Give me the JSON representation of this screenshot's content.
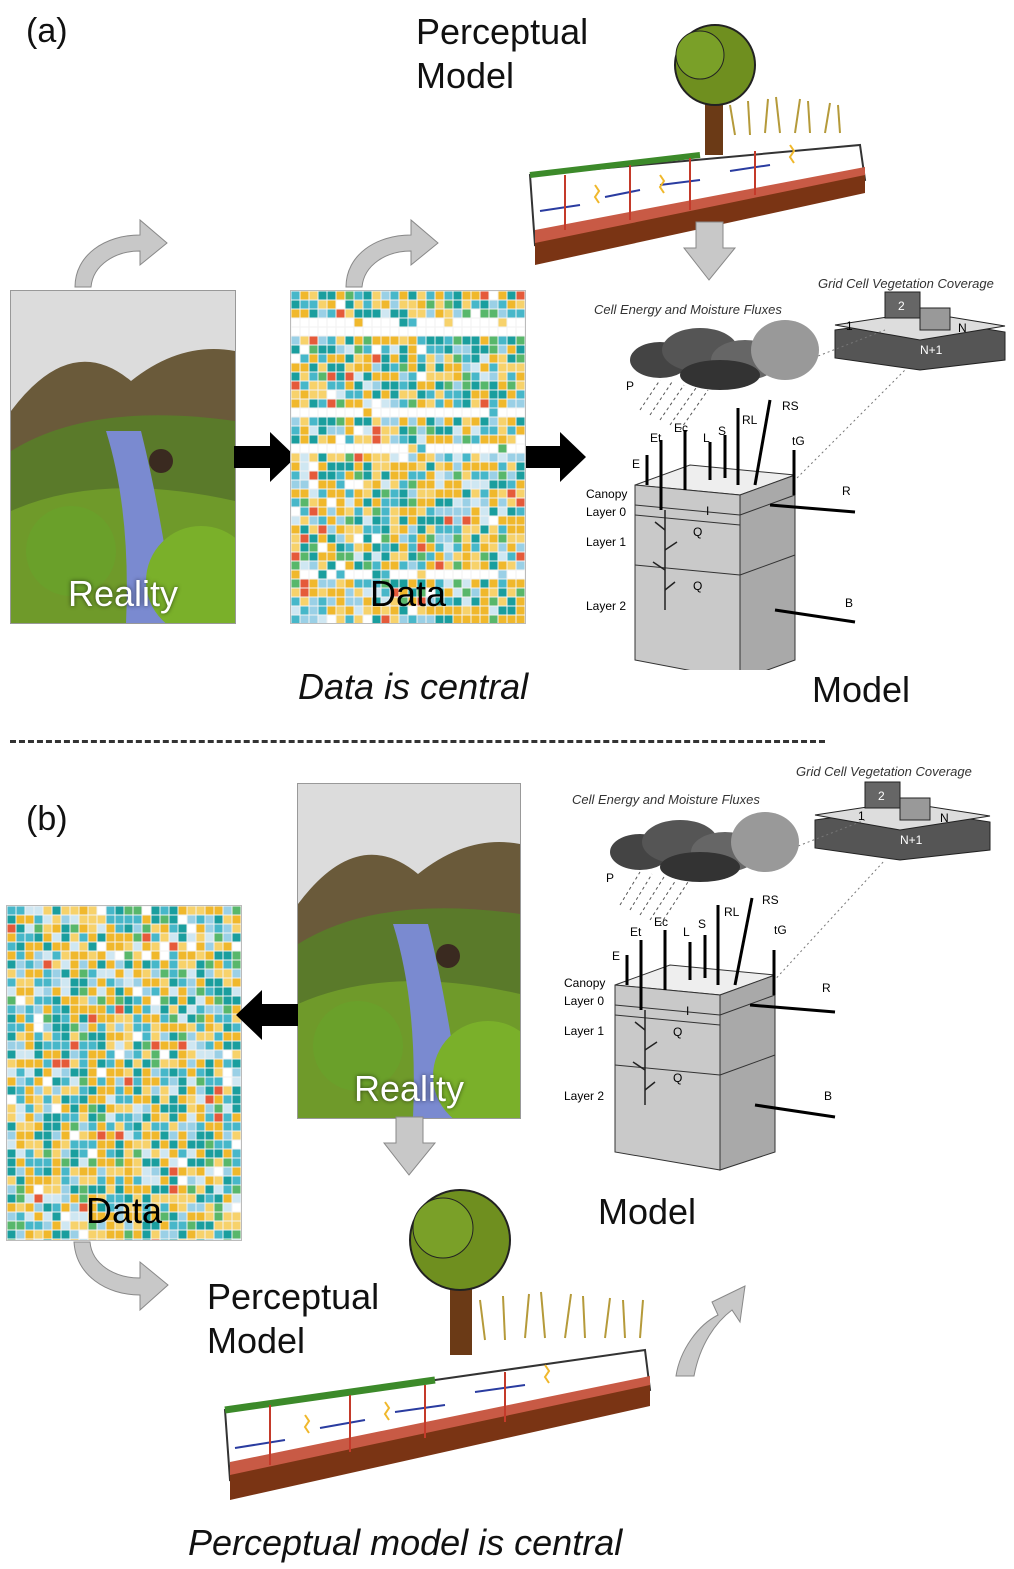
{
  "panel_a": {
    "label": "(a)",
    "reality_label": "Reality",
    "data_label": "Data",
    "perceptual_model_label": "Perceptual\nModel",
    "model_label": "Model",
    "caption": "Data is central"
  },
  "panel_b": {
    "label": "(b)",
    "reality_label": "Reality",
    "data_label": "Data",
    "perceptual_model_label": "Perceptual\nModel",
    "model_label": "Model",
    "caption": "Perceptual model is central"
  },
  "model_diagram": {
    "fluxes_title": "Cell Energy and Moisture Fluxes",
    "vegetation_title": "Grid Cell Vegetation Coverage",
    "layers": [
      "Canopy",
      "Layer 0",
      "Layer 1",
      "Layer 2"
    ],
    "flux_symbols": [
      "P",
      "E",
      "Et",
      "Ec",
      "L",
      "S",
      "RL",
      "RS",
      "tG",
      "R",
      "B",
      "I",
      "Q"
    ],
    "tiles": [
      "1",
      "2",
      "N",
      "N+1"
    ]
  },
  "colors": {
    "grid_palette": [
      "#f0b82c",
      "#f7d26b",
      "#1a9e9e",
      "#47b7c9",
      "#9ad0e6",
      "#cfe7f2",
      "#58b76b",
      "#e55a3a",
      "#ffffff"
    ],
    "arrow_black": "#000000",
    "arrow_gray": "#c8c8c8",
    "soil": "#7a3414",
    "tree": "#5b7a1e"
  }
}
